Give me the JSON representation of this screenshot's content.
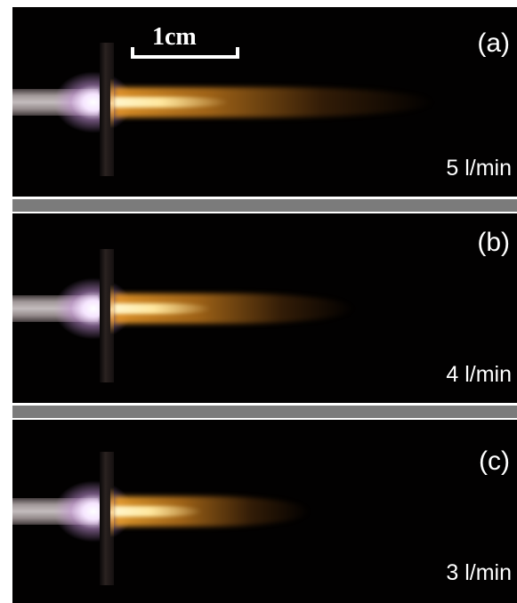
{
  "scale_bar": {
    "label": "1cm"
  },
  "panels": [
    {
      "id": "a",
      "label": "(a)",
      "flow_rate": "5 l/min",
      "jet_length": 0.85
    },
    {
      "id": "b",
      "label": "(b)",
      "flow_rate": "4 l/min",
      "jet_length": 0.62
    },
    {
      "id": "c",
      "label": "(c)",
      "flow_rate": "3 l/min",
      "jet_length": 0.5
    }
  ],
  "colors": {
    "background": "#020101",
    "separator": "#7b7b7b",
    "jet_core": "#ffe8a0",
    "jet_outer": "#d88a1c",
    "electrode_glow": "#f6e6ff"
  }
}
